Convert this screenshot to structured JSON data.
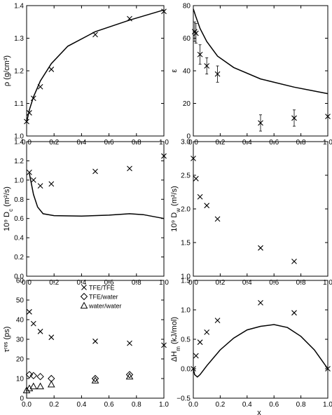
{
  "chart_data": [
    {
      "type": "scatter",
      "xlabel": "",
      "ylabel": "ρ (g/cm³)",
      "xlim": [
        0,
        1
      ],
      "ylim": [
        0.95,
        1.4
      ],
      "xticks": [
        "0.0",
        "0.2",
        "0.4",
        "0.6",
        "0.8",
        "1.0"
      ],
      "yticks": [
        "1.0",
        "1.1",
        "1.2",
        "1.3",
        "1.4"
      ],
      "series": [
        {
          "kind": "points",
          "marker": "x",
          "points": [
            [
              0,
              1.0
            ],
            [
              0.02,
              1.03
            ],
            [
              0.05,
              1.08
            ],
            [
              0.1,
              1.12
            ],
            [
              0.18,
              1.18
            ],
            [
              0.5,
              1.3
            ],
            [
              0.75,
              1.355
            ],
            [
              1.0,
              1.38
            ]
          ]
        },
        {
          "kind": "line",
          "points": [
            [
              0,
              0.997
            ],
            [
              0.02,
              1.04
            ],
            [
              0.05,
              1.085
            ],
            [
              0.1,
              1.14
            ],
            [
              0.18,
              1.2
            ],
            [
              0.3,
              1.26
            ],
            [
              0.5,
              1.31
            ],
            [
              0.75,
              1.35
            ],
            [
              1.0,
              1.385
            ]
          ]
        }
      ]
    },
    {
      "type": "scatter",
      "xlabel": "",
      "ylabel": "ε",
      "xlim": [
        0,
        1
      ],
      "ylim": [
        0,
        80
      ],
      "xticks": [
        "0.0",
        "0.2",
        "0.4",
        "0.6",
        "0.8",
        "1.0"
      ],
      "yticks": [
        "0",
        "20",
        "40",
        "60",
        "80"
      ],
      "series": [
        {
          "kind": "points",
          "marker": "x",
          "points": [
            [
              0.01,
              64
            ],
            [
              0.02,
              63
            ],
            [
              0.05,
              50
            ],
            [
              0.1,
              43
            ],
            [
              0.18,
              38
            ],
            [
              0.5,
              8
            ],
            [
              0.75,
              11
            ],
            [
              1.0,
              12
            ]
          ],
          "errors": [
            6,
            6,
            6,
            5,
            5,
            5,
            5,
            0
          ]
        },
        {
          "kind": "line",
          "points": [
            [
              0,
              78
            ],
            [
              0.02,
              73
            ],
            [
              0.05,
              66
            ],
            [
              0.1,
              58
            ],
            [
              0.18,
              49
            ],
            [
              0.3,
              42
            ],
            [
              0.5,
              35
            ],
            [
              0.75,
              30
            ],
            [
              1.0,
              26
            ]
          ]
        }
      ]
    },
    {
      "type": "scatter",
      "xlabel": "",
      "ylabel": "10⁹ D_c (m²/s)",
      "xlim": [
        0,
        1
      ],
      "ylim": [
        0,
        1.4
      ],
      "xticks": [
        "0.0",
        "0.2",
        "0.4",
        "0.6",
        "0.8",
        "1.0"
      ],
      "yticks": [
        "0.0",
        "0.2",
        "0.4",
        "0.6",
        "0.8",
        "1.0",
        "1.2",
        "1.4"
      ],
      "series": [
        {
          "kind": "points",
          "marker": "x",
          "points": [
            [
              0.02,
              1.08
            ],
            [
              0.05,
              1.0
            ],
            [
              0.1,
              0.94
            ],
            [
              0.18,
              0.96
            ],
            [
              0.5,
              1.09
            ],
            [
              0.75,
              1.12
            ],
            [
              1.0,
              1.25
            ]
          ]
        },
        {
          "kind": "line",
          "points": [
            [
              0.02,
              1.07
            ],
            [
              0.05,
              0.85
            ],
            [
              0.08,
              0.72
            ],
            [
              0.12,
              0.65
            ],
            [
              0.2,
              0.63
            ],
            [
              0.4,
              0.625
            ],
            [
              0.6,
              0.635
            ],
            [
              0.75,
              0.65
            ],
            [
              0.85,
              0.64
            ],
            [
              1.0,
              0.6
            ]
          ]
        }
      ]
    },
    {
      "type": "scatter",
      "xlabel": "",
      "ylabel": "10⁹ D_w (m²/s)",
      "xlim": [
        0,
        1
      ],
      "ylim": [
        1.0,
        3.0
      ],
      "xticks": [
        "0.0",
        "0.2",
        "0.4",
        "0.6",
        "0.8",
        "1.0"
      ],
      "yticks": [
        "1.0",
        "1.5",
        "2.0",
        "2.5",
        "3.0"
      ],
      "series": [
        {
          "kind": "points",
          "marker": "x",
          "points": [
            [
              0.0,
              2.75
            ],
            [
              0.02,
              2.45
            ],
            [
              0.05,
              2.18
            ],
            [
              0.1,
              2.05
            ],
            [
              0.18,
              1.85
            ],
            [
              0.5,
              1.42
            ],
            [
              0.75,
              1.22
            ]
          ]
        }
      ]
    },
    {
      "type": "scatter",
      "xlabel": "",
      "ylabel": "τʳᵉˢ (ps)",
      "xlim": [
        0,
        1
      ],
      "ylim": [
        0,
        60
      ],
      "xticks": [
        "0.0",
        "0.2",
        "0.4",
        "0.6",
        "0.8",
        "1.0"
      ],
      "yticks": [
        "0",
        "10",
        "20",
        "30",
        "40",
        "50",
        "60"
      ],
      "series": [
        {
          "name": "TFE/TFE",
          "kind": "points",
          "marker": "x",
          "points": [
            [
              0.02,
              44
            ],
            [
              0.05,
              38
            ],
            [
              0.1,
              34
            ],
            [
              0.18,
              31
            ],
            [
              0.5,
              29
            ],
            [
              0.75,
              28
            ],
            [
              1.0,
              27
            ]
          ]
        },
        {
          "name": "TFE/water",
          "kind": "points",
          "marker": "diamond",
          "points": [
            [
              0.02,
              12
            ],
            [
              0.05,
              11.5
            ],
            [
              0.1,
              11
            ],
            [
              0.18,
              10
            ],
            [
              0.5,
              10
            ],
            [
              0.75,
              12
            ]
          ]
        },
        {
          "name": "water/water",
          "kind": "points",
          "marker": "triangle",
          "points": [
            [
              0.0,
              4
            ],
            [
              0.02,
              5
            ],
            [
              0.05,
              6
            ],
            [
              0.1,
              6
            ],
            [
              0.18,
              7
            ],
            [
              0.5,
              9
            ],
            [
              0.75,
              11
            ]
          ]
        }
      ]
    },
    {
      "type": "scatter",
      "xlabel": "x_c",
      "ylabel": "ΔH_m (kJ/mol)",
      "xlim": [
        0,
        1
      ],
      "ylim": [
        -0.5,
        1.5
      ],
      "xticks": [
        "0.0",
        "0.2",
        "0.4",
        "0.6",
        "0.8",
        "1.0"
      ],
      "yticks": [
        "−0.5",
        "0.0",
        "0.5",
        "1.0",
        "1.5"
      ],
      "series": [
        {
          "kind": "points",
          "marker": "x",
          "points": [
            [
              0.0,
              0.0
            ],
            [
              0.02,
              0.22
            ],
            [
              0.05,
              0.45
            ],
            [
              0.1,
              0.62
            ],
            [
              0.18,
              0.82
            ],
            [
              0.5,
              1.12
            ],
            [
              0.75,
              0.95
            ],
            [
              1.0,
              0.0
            ]
          ]
        },
        {
          "kind": "line",
          "points": [
            [
              0.0,
              0.0
            ],
            [
              0.01,
              -0.1
            ],
            [
              0.03,
              -0.14
            ],
            [
              0.05,
              -0.1
            ],
            [
              0.1,
              0.05
            ],
            [
              0.2,
              0.32
            ],
            [
              0.3,
              0.52
            ],
            [
              0.4,
              0.66
            ],
            [
              0.5,
              0.72
            ],
            [
              0.6,
              0.75
            ],
            [
              0.7,
              0.7
            ],
            [
              0.8,
              0.55
            ],
            [
              0.9,
              0.32
            ],
            [
              1.0,
              0.0
            ]
          ]
        }
      ]
    }
  ]
}
